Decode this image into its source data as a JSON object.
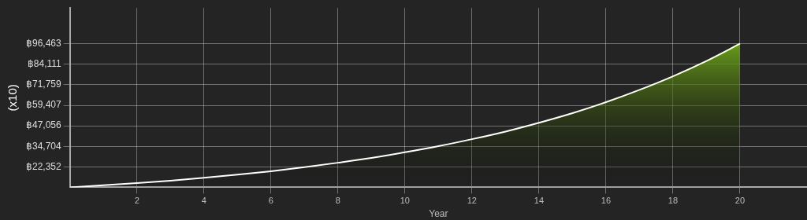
{
  "chart_data": {
    "type": "area",
    "xlabel": "Year",
    "ylabel": "(x10)",
    "x": [
      0,
      1,
      2,
      3,
      4,
      5,
      6,
      7,
      8,
      9,
      10,
      11,
      12,
      13,
      14,
      15,
      16,
      17,
      18,
      19,
      20
    ],
    "series": [
      {
        "color": "#78b41c",
        "values": [
          10000,
          11200,
          12500,
          14000,
          15700,
          17600,
          19700,
          22100,
          24800,
          27700,
          31100,
          34800,
          39000,
          43600,
          48900,
          54700,
          61300,
          68700,
          76900,
          86100,
          96463
        ]
      }
    ],
    "xlim": [
      0,
      22
    ],
    "xticks": [
      2,
      4,
      6,
      8,
      10,
      12,
      14,
      16,
      18,
      20
    ],
    "ylim": [
      10000,
      118000
    ],
    "yticks": [
      {
        "value": 22352,
        "label": "฿22,352"
      },
      {
        "value": 34704,
        "label": "฿34,704"
      },
      {
        "value": 47056,
        "label": "฿47,056"
      },
      {
        "value": 59407,
        "label": "฿59,407"
      },
      {
        "value": 71759,
        "label": "฿71,759"
      },
      {
        "value": 84111,
        "label": "฿84,111"
      },
      {
        "value": 96463,
        "label": "฿96,463"
      }
    ],
    "grid": true,
    "legend": false,
    "marker": "none",
    "line_style": "solid"
  }
}
